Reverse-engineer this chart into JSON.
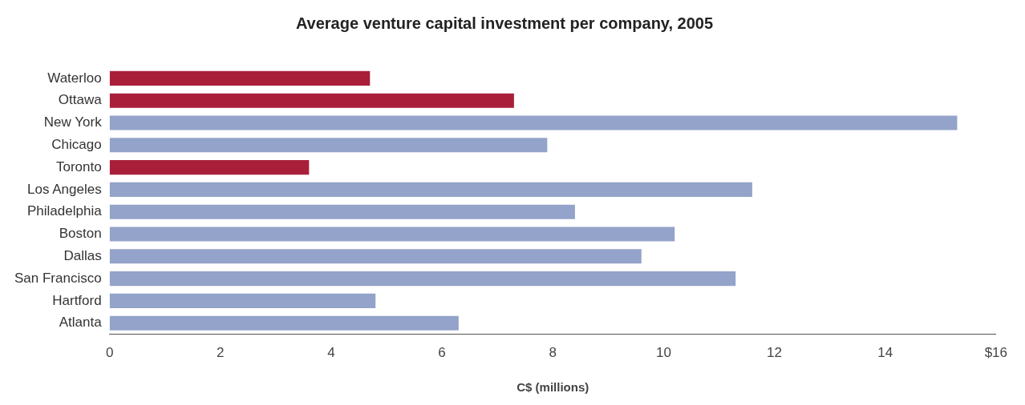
{
  "chart_data": {
    "type": "bar",
    "orientation": "horizontal",
    "title": "Average venture capital investment per company, 2005",
    "xlabel": "C$ (millions)",
    "categories": [
      "Waterloo",
      "Ottawa",
      "New York",
      "Chicago",
      "Toronto",
      "Los Angeles",
      "Philadelphia",
      "Boston",
      "Dallas",
      "San Francisco",
      "Hartford",
      "Atlanta"
    ],
    "values": [
      4.7,
      7.3,
      15.3,
      7.9,
      3.6,
      11.6,
      8.4,
      10.2,
      9.6,
      11.3,
      4.8,
      6.3
    ],
    "colors": [
      "#a91f3a",
      "#a91f3a",
      "#93a3c9",
      "#93a3c9",
      "#a91f3a",
      "#93a3c9",
      "#93a3c9",
      "#93a3c9",
      "#93a3c9",
      "#93a3c9",
      "#93a3c9",
      "#93a3c9"
    ],
    "xlim": [
      0,
      16
    ],
    "xticks": [
      0,
      2,
      4,
      6,
      8,
      10,
      12,
      14,
      {
        "value": 16,
        "label": "$16"
      }
    ],
    "grid": false,
    "legend": false
  }
}
